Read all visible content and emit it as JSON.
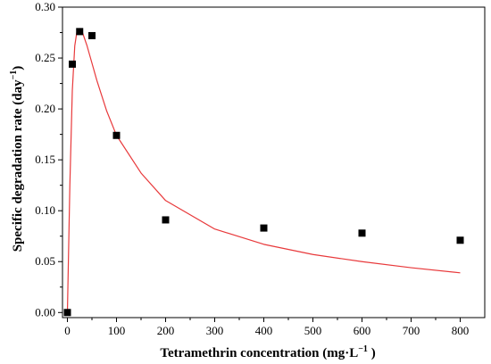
{
  "chart_data": {
    "type": "scatter",
    "title": "",
    "xlabel": {
      "main": "Tetramethrin concentration (mg·L",
      "sup": "−1",
      "end": " )"
    },
    "ylabel": {
      "main": "Specific degradation rate (day",
      "sup": "−1",
      "end": ")"
    },
    "xlim": [
      -10,
      850
    ],
    "ylim": [
      -0.005,
      0.3
    ],
    "x_ticks": [
      0,
      100,
      200,
      300,
      400,
      500,
      600,
      700,
      800
    ],
    "x_tick_labels": [
      "0",
      "100",
      "200",
      "300",
      "400",
      "500",
      "600",
      "700",
      "800"
    ],
    "y_ticks": [
      0.0,
      0.05,
      0.1,
      0.15,
      0.2,
      0.25,
      0.3
    ],
    "y_tick_labels": [
      "0.00",
      "0.05",
      "0.10",
      "0.15",
      "0.20",
      "0.25",
      "0.30"
    ],
    "grid": false,
    "legend": "none",
    "series": [
      {
        "kind": "points",
        "marker": "square",
        "color": "#000000",
        "x": [
          0,
          10,
          25,
          50,
          100,
          200,
          400,
          600,
          800
        ],
        "y": [
          0.0,
          0.244,
          0.276,
          0.272,
          0.174,
          0.091,
          0.083,
          0.078,
          0.071
        ]
      },
      {
        "kind": "fitted-curve",
        "color": "#e8393b",
        "x": [
          0,
          2,
          5,
          10,
          15,
          20,
          25,
          30,
          40,
          50,
          60,
          80,
          100,
          150,
          200,
          300,
          400,
          500,
          600,
          700,
          800
        ],
        "y": [
          0.0,
          0.05,
          0.125,
          0.218,
          0.262,
          0.278,
          0.279,
          0.276,
          0.262,
          0.245,
          0.228,
          0.198,
          0.174,
          0.137,
          0.11,
          0.082,
          0.067,
          0.057,
          0.05,
          0.044,
          0.039
        ]
      }
    ]
  }
}
